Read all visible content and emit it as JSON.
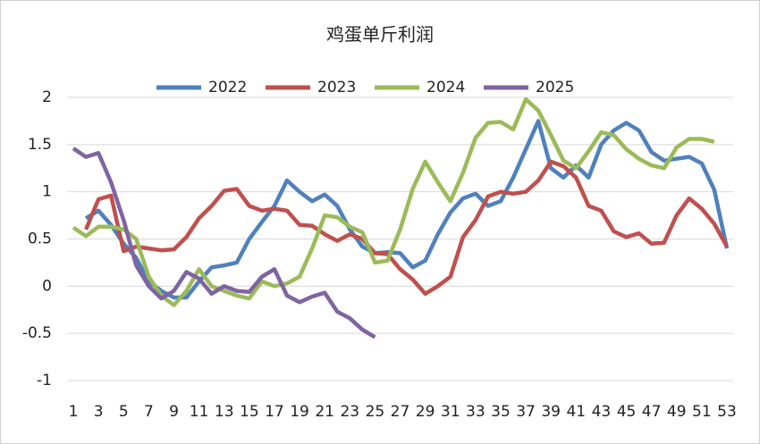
{
  "chart_data": {
    "type": "line",
    "title": "鸡蛋单斤利润",
    "categories": [
      1,
      null,
      3,
      null,
      5,
      null,
      7,
      null,
      9,
      null,
      11,
      null,
      13,
      null,
      15,
      null,
      17,
      null,
      19,
      null,
      21,
      null,
      23,
      null,
      25,
      null,
      27,
      null,
      29,
      null,
      31,
      null,
      33,
      null,
      35,
      null,
      37,
      null,
      39,
      null,
      41,
      null,
      43,
      null,
      45,
      null,
      47,
      null,
      49,
      null,
      51,
      null,
      53
    ],
    "series": [
      {
        "name": "2022",
        "color": "#4f81bd",
        "values": [
          null,
          0.72,
          0.8,
          0.65,
          0.45,
          0.3,
          0.05,
          -0.05,
          -0.12,
          -0.12,
          0.05,
          0.2,
          0.22,
          0.25,
          0.5,
          0.68,
          0.85,
          1.12,
          1.0,
          0.9,
          0.97,
          0.85,
          0.6,
          0.42,
          0.35,
          0.36,
          0.35,
          0.2,
          0.27,
          0.55,
          0.78,
          0.93,
          0.98,
          0.85,
          0.9,
          1.15,
          1.45,
          1.75,
          1.25,
          1.15,
          1.28,
          1.15,
          1.5,
          1.65,
          1.73,
          1.65,
          1.42,
          1.33,
          1.35,
          1.37,
          1.3,
          1.02,
          0.4
        ]
      },
      {
        "name": "2023",
        "color": "#c0504d",
        "values": [
          null,
          0.6,
          0.92,
          0.96,
          0.37,
          0.42,
          0.4,
          0.38,
          0.39,
          0.52,
          0.72,
          0.85,
          1.01,
          1.03,
          0.85,
          0.8,
          0.82,
          0.8,
          0.65,
          0.64,
          0.55,
          0.48,
          0.55,
          0.5,
          0.35,
          0.34,
          0.18,
          0.07,
          -0.08,
          0.0,
          0.1,
          0.52,
          0.7,
          0.95,
          1.0,
          0.98,
          1.0,
          1.12,
          1.32,
          1.27,
          1.15,
          0.85,
          0.8,
          0.58,
          0.52,
          0.56,
          0.45,
          0.46,
          0.75,
          0.93,
          0.82,
          0.66,
          0.42
        ]
      },
      {
        "name": "2024",
        "color": "#9bbb59",
        "values": [
          0.62,
          0.53,
          0.63,
          0.63,
          0.6,
          0.5,
          0.1,
          -0.1,
          -0.2,
          -0.05,
          0.18,
          0.0,
          -0.05,
          -0.1,
          -0.13,
          0.05,
          0.0,
          0.03,
          0.1,
          0.4,
          0.75,
          0.73,
          0.63,
          0.57,
          0.25,
          0.27,
          0.6,
          1.03,
          1.32,
          1.1,
          0.9,
          1.2,
          1.57,
          1.73,
          1.74,
          1.66,
          1.98,
          1.86,
          1.6,
          1.33,
          1.25,
          1.43,
          1.63,
          1.6,
          1.45,
          1.35,
          1.28,
          1.25,
          1.47,
          1.56,
          1.56,
          1.53,
          null
        ]
      },
      {
        "name": "2025",
        "color": "#8064a2",
        "values": [
          1.46,
          1.37,
          1.41,
          1.1,
          0.7,
          0.22,
          0.0,
          -0.13,
          -0.05,
          0.15,
          0.08,
          -0.08,
          0.0,
          -0.05,
          -0.06,
          0.1,
          0.18,
          -0.1,
          -0.17,
          -0.11,
          -0.07,
          -0.27,
          -0.34,
          -0.46,
          -0.54,
          null,
          null,
          null,
          null,
          null,
          null,
          null,
          null,
          null,
          null,
          null,
          null,
          null,
          null,
          null,
          null,
          null,
          null,
          null,
          null,
          null,
          null,
          null,
          null,
          null,
          null,
          null,
          null
        ]
      }
    ],
    "ylim": [
      -1,
      2
    ],
    "yticks": [
      -1,
      -0.5,
      0,
      0.5,
      1,
      1.5,
      2
    ],
    "grid": true
  }
}
